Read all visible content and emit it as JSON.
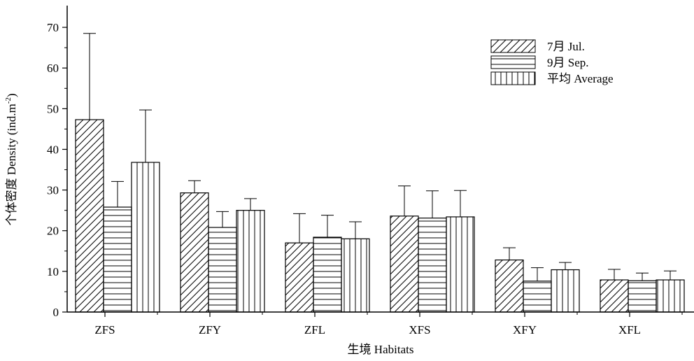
{
  "colors": {
    "ink": "#000000",
    "background": "#ffffff"
  },
  "chart_data": {
    "type": "bar",
    "title": "",
    "xlabel": "生境 Habitats",
    "ylabel_main": "个体密度  Density (ind.m",
    "ylabel_sup": "-2",
    "ylabel_tail": ")",
    "categories": [
      "ZFS",
      "ZFY",
      "ZFL",
      "XFS",
      "XFY",
      "XFL"
    ],
    "ylim": [
      0,
      75
    ],
    "yticks": [
      0,
      10,
      20,
      30,
      40,
      50,
      60,
      70
    ],
    "legend_position": "top-right",
    "grid": false,
    "series": [
      {
        "name": "7月 Jul.",
        "pattern": "diagonal-hatch",
        "values": [
          47.3,
          29.3,
          17.0,
          23.6,
          12.8,
          7.9
        ],
        "errors": [
          21.2,
          3.0,
          7.2,
          7.4,
          3.0,
          2.6
        ]
      },
      {
        "name": "9月 Sep.",
        "pattern": "horizontal-hatch",
        "values": [
          25.8,
          20.8,
          18.4,
          23.1,
          7.6,
          7.7
        ],
        "errors": [
          6.3,
          3.9,
          5.4,
          6.7,
          3.3,
          1.9
        ]
      },
      {
        "name": "平均 Average",
        "pattern": "vertical-hatch",
        "values": [
          36.8,
          25.0,
          18.0,
          23.4,
          10.4,
          7.9
        ],
        "errors": [
          12.9,
          2.9,
          4.2,
          6.5,
          1.8,
          2.2
        ]
      }
    ]
  }
}
